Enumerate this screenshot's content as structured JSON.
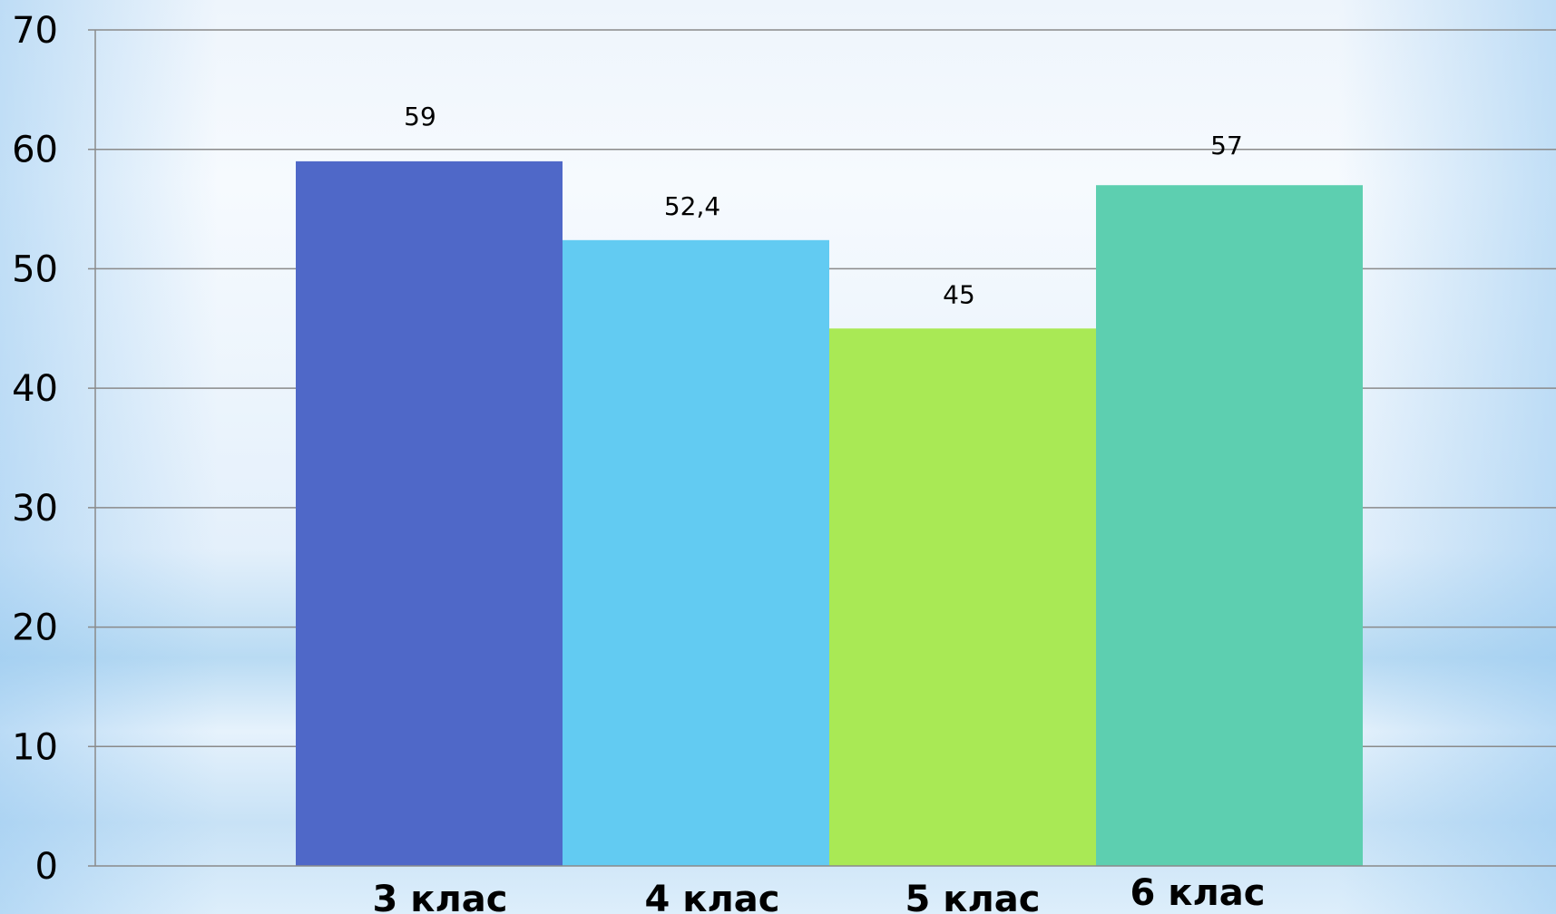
{
  "chart_data": {
    "type": "bar",
    "categories": [
      "3 клас",
      "4 клас",
      "5 клас",
      "6 клас"
    ],
    "values": [
      59,
      52.4,
      45,
      57
    ],
    "data_labels": [
      "59",
      "52,4",
      "45",
      "57"
    ],
    "colors": [
      "#4f68c8",
      "#62cbf2",
      "#a9e955",
      "#5dcfb0"
    ],
    "yticks": [
      "0",
      "10",
      "20",
      "30",
      "40",
      "50",
      "60",
      "70"
    ],
    "ylim": [
      0,
      70
    ],
    "grid": true,
    "title": "",
    "xlabel": "",
    "ylabel": ""
  }
}
